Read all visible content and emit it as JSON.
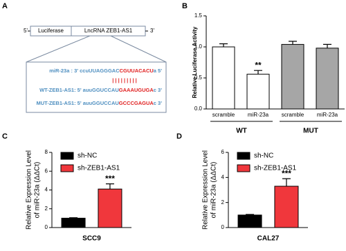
{
  "diagram": {
    "panel": "A",
    "five_prime": "5'",
    "three_prime": "3'",
    "boxes": [
      "Luciferase",
      "LncRNA ZEB1-AS1"
    ],
    "rows": [
      {
        "label": "miR-23a : 3' ccuUUAGGGAC",
        "seed": "CGUUACACU",
        "tail": "a 5'"
      },
      {
        "label": "WT-ZEB1-AS1: 5' auuGGUCCAU",
        "seed": "GAAAUGUGA",
        "tail": "c 3'"
      },
      {
        "label": "MUT-ZEB1-AS1: 5' auuGGUCCAU",
        "seed": "GCCCGAGUA",
        "tail": "c 3'"
      }
    ],
    "pairing": "| | | | | | | | |"
  },
  "chart_data": [
    {
      "type": "bar",
      "panel": "B",
      "ylabel": "Relative Luciferase Activity",
      "categories": [
        "scramble",
        "miR-23a",
        "scramble",
        "miR-23a"
      ],
      "groups": [
        "WT",
        "MUT"
      ],
      "values": [
        1.0,
        0.56,
        1.04,
        0.98
      ],
      "errors": [
        0.05,
        0.06,
        0.05,
        0.06
      ],
      "colors": [
        "#ffffff",
        "#ffffff",
        "#a6a6a6",
        "#a6a6a6"
      ],
      "annotations": [
        null,
        "**",
        null,
        null
      ],
      "ylim": [
        0,
        1.5
      ],
      "yticks": [
        {
          "value": 0,
          "label": "0.0"
        },
        {
          "value": 0.5,
          "label": "0.5"
        },
        {
          "value": 1,
          "label": "1.0"
        },
        {
          "value": 1.5,
          "label": "1.5"
        }
      ]
    },
    {
      "type": "grouped_bar",
      "panel": "C",
      "ylabel": [
        "Relative Expression Level",
        "of miR-23a (ΔΔCt)"
      ],
      "categories": [
        "SCC9"
      ],
      "series": [
        {
          "name": "sh-NC",
          "color": "#000000",
          "values": [
            1.0
          ],
          "errors": [
            0.05
          ],
          "annotations": [
            null
          ]
        },
        {
          "name": "sh-ZEB1-AS1",
          "color": "#f0373c",
          "values": [
            4.1
          ],
          "errors": [
            0.55
          ],
          "annotations": [
            "***"
          ]
        }
      ],
      "legend": "upper left",
      "ylim": [
        0,
        8
      ],
      "yticks": [
        0,
        2,
        4,
        6,
        8
      ]
    },
    {
      "type": "grouped_bar",
      "panel": "D",
      "ylabel": [
        "Relative Expression Level",
        "of miR-23a (ΔΔCt)"
      ],
      "categories": [
        "CAL27"
      ],
      "series": [
        {
          "name": "sh-NC",
          "color": "#000000",
          "values": [
            1.0
          ],
          "errors": [
            0.05
          ],
          "annotations": [
            null
          ]
        },
        {
          "name": "sh-ZEB1-AS1",
          "color": "#f0373c",
          "values": [
            3.3
          ],
          "errors": [
            0.6
          ],
          "annotations": [
            "***"
          ]
        }
      ],
      "legend": "upper left",
      "ylim": [
        0,
        6
      ],
      "yticks": [
        0,
        2,
        4,
        6
      ]
    }
  ]
}
